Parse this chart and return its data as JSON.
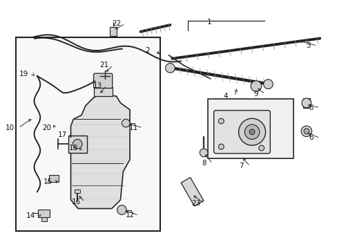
{
  "bg_color": "#ffffff",
  "fig_width": 4.89,
  "fig_height": 3.6,
  "dpi": 100,
  "line_color": "#222222",
  "label_arrows": {
    "1": {
      "lpos": [
        3.1,
        3.32
      ],
      "apos": null
    },
    "2": {
      "lpos": [
        2.18,
        2.9
      ],
      "apos": [
        2.38,
        2.82
      ]
    },
    "3": {
      "lpos": [
        4.58,
        2.97
      ],
      "apos": [
        4.42,
        3.05
      ]
    },
    "4": {
      "lpos": [
        3.35,
        2.22
      ],
      "apos": [
        3.52,
        2.36
      ]
    },
    "5": {
      "lpos": [
        4.62,
        2.05
      ],
      "apos": [
        4.54,
        2.1
      ]
    },
    "6": {
      "lpos": [
        4.62,
        1.6
      ],
      "apos": [
        4.54,
        1.68
      ]
    },
    "7": {
      "lpos": [
        3.58,
        1.18
      ],
      "apos": [
        3.58,
        1.32
      ]
    },
    "8": {
      "lpos": [
        3.02,
        1.22
      ],
      "apos": [
        3.02,
        1.38
      ]
    },
    "9": {
      "lpos": [
        3.8,
        2.25
      ],
      "apos": [
        3.8,
        2.36
      ]
    },
    "10": {
      "lpos": [
        0.13,
        1.75
      ],
      "apos": [
        0.48,
        1.9
      ]
    },
    "11": {
      "lpos": [
        1.98,
        1.75
      ],
      "apos": [
        1.88,
        1.82
      ]
    },
    "12": {
      "lpos": [
        1.92,
        0.45
      ],
      "apos": [
        1.82,
        0.53
      ]
    },
    "13": {
      "lpos": [
        1.44,
        2.38
      ],
      "apos": [
        1.46,
        2.24
      ]
    },
    "14": {
      "lpos": [
        0.44,
        0.44
      ],
      "apos": [
        0.62,
        0.48
      ]
    },
    "15": {
      "lpos": [
        0.7,
        0.95
      ],
      "apos": [
        0.8,
        1.0
      ]
    },
    "16": {
      "lpos": [
        1.12,
        0.65
      ],
      "apos": [
        1.14,
        0.76
      ]
    },
    "17": {
      "lpos": [
        0.92,
        1.65
      ],
      "apos": [
        1.02,
        1.57
      ]
    },
    "18": {
      "lpos": [
        1.08,
        1.45
      ],
      "apos": [
        1.14,
        1.4
      ]
    },
    "19": {
      "lpos": [
        0.34,
        2.55
      ],
      "apos": [
        0.5,
        2.52
      ]
    },
    "20": {
      "lpos": [
        0.68,
        1.75
      ],
      "apos": [
        0.76,
        1.82
      ]
    },
    "21": {
      "lpos": [
        1.54,
        2.68
      ],
      "apos": [
        1.54,
        2.56
      ]
    },
    "22": {
      "lpos": [
        1.72,
        3.3
      ],
      "apos": [
        1.67,
        3.2
      ]
    },
    "23": {
      "lpos": [
        2.9,
        0.63
      ],
      "apos": [
        2.84,
        0.76
      ]
    }
  }
}
